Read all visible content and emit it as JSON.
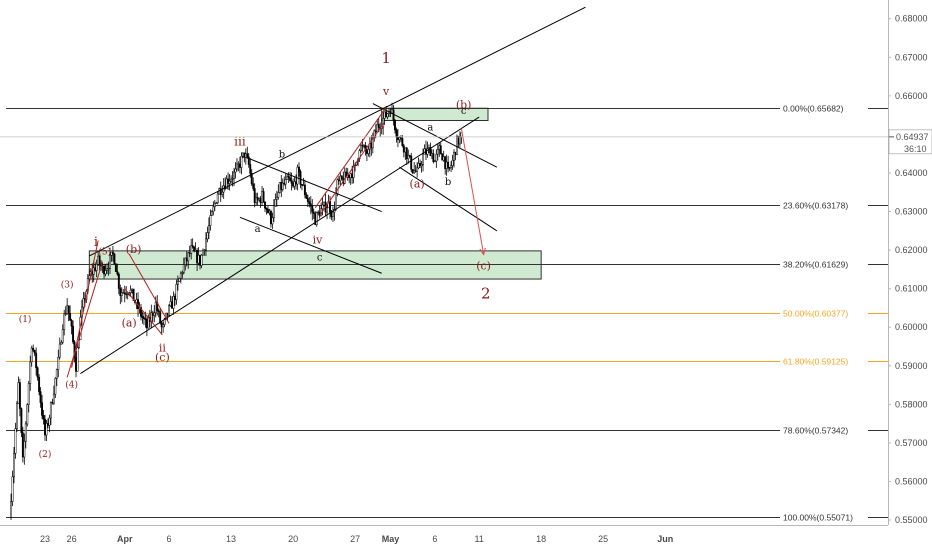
{
  "chart_data": {
    "type": "candlestick",
    "ylim": [
      0.5495,
      0.6833
    ],
    "y_ticks": [
      "0.55000",
      "0.56000",
      "0.57000",
      "0.58000",
      "0.59000",
      "0.60000",
      "0.61000",
      "0.62000",
      "0.63000",
      "0.64000",
      "0.65000",
      "0.66000",
      "0.67000",
      "0.68000"
    ],
    "x_ticks": [
      "23",
      "26",
      "Apr",
      "6",
      "13",
      "20",
      "27",
      "May",
      "6",
      "11",
      "18",
      "25",
      "Jun"
    ],
    "x_tick_dates": [
      "2020-03-23",
      "2020-03-26",
      "2020-04-01",
      "2020-04-06",
      "2020-04-13",
      "2020-04-20",
      "2020-04-27",
      "2020-05-01",
      "2020-05-06",
      "2020-05-11",
      "2020-05-18",
      "2020-05-25",
      "2020-06-01"
    ],
    "current_price": {
      "value": 0.64937,
      "label": "0.64937",
      "countdown": "36:10",
      "color": "#555555"
    },
    "price_path": [
      [
        "2020-03-19T00:00",
        0.5507
      ],
      [
        "2020-03-20T00:00",
        0.585
      ],
      [
        "2020-03-20T12:00",
        0.565
      ],
      [
        "2020-03-21T12:00",
        0.596
      ],
      [
        "2020-03-22T00:00",
        0.59
      ],
      [
        "2020-03-23T00:00",
        0.572
      ],
      [
        "2020-03-23T12:00",
        0.577
      ],
      [
        "2020-03-24T12:00",
        0.591
      ],
      [
        "2020-03-25T00:00",
        0.601
      ],
      [
        "2020-03-25T12:00",
        0.606
      ],
      [
        "2020-03-26T00:00",
        0.599
      ],
      [
        "2020-03-26T12:00",
        0.59
      ],
      [
        "2020-03-27T00:00",
        0.602
      ],
      [
        "2020-03-27T12:00",
        0.608
      ],
      [
        "2020-03-28T00:00",
        0.613
      ],
      [
        "2020-03-29T00:00",
        0.617
      ],
      [
        "2020-03-29T12:00",
        0.615
      ],
      [
        "2020-03-30T00:00",
        0.616
      ],
      [
        "2020-03-30T18:00",
        0.619
      ],
      [
        "2020-03-31T12:00",
        0.609
      ],
      [
        "2020-04-01T12:00",
        0.61
      ],
      [
        "2020-04-02T12:00",
        0.605
      ],
      [
        "2020-04-03T12:00",
        0.6
      ],
      [
        "2020-04-04T12:00",
        0.606
      ],
      [
        "2020-04-05T06:00",
        0.599
      ],
      [
        "2020-04-05T18:00",
        0.603
      ],
      [
        "2020-04-06T12:00",
        0.607
      ],
      [
        "2020-04-07T12:00",
        0.615
      ],
      [
        "2020-04-08T12:00",
        0.62
      ],
      [
        "2020-04-09T12:00",
        0.617
      ],
      [
        "2020-04-10T12:00",
        0.626
      ],
      [
        "2020-04-11T12:00",
        0.635
      ],
      [
        "2020-04-12T12:00",
        0.638
      ],
      [
        "2020-04-13T12:00",
        0.64
      ],
      [
        "2020-04-14T12:00",
        0.645
      ],
      [
        "2020-04-15T00:00",
        0.642
      ],
      [
        "2020-04-15T18:00",
        0.632
      ],
      [
        "2020-04-16T12:00",
        0.634
      ],
      [
        "2020-04-17T12:00",
        0.628
      ],
      [
        "2020-04-18T12:00",
        0.636
      ],
      [
        "2020-04-19T12:00",
        0.638
      ],
      [
        "2020-04-20T00:00",
        0.636
      ],
      [
        "2020-04-20T12:00",
        0.64
      ],
      [
        "2020-04-21T12:00",
        0.634
      ],
      [
        "2020-04-22T12:00",
        0.628
      ],
      [
        "2020-04-23T00:00",
        0.63
      ],
      [
        "2020-04-24T00:00",
        0.632
      ],
      [
        "2020-04-24T12:00",
        0.629
      ],
      [
        "2020-04-25T00:00",
        0.637
      ],
      [
        "2020-04-26T00:00",
        0.639
      ],
      [
        "2020-04-27T00:00",
        0.641
      ],
      [
        "2020-04-27T12:00",
        0.647
      ],
      [
        "2020-04-28T12:00",
        0.645
      ],
      [
        "2020-04-29T12:00",
        0.652
      ],
      [
        "2020-04-30T12:00",
        0.655
      ],
      [
        "2020-05-01T00:00",
        0.657
      ],
      [
        "2020-05-01T18:00",
        0.65
      ],
      [
        "2020-05-02T12:00",
        0.647
      ],
      [
        "2020-05-03T12:00",
        0.641
      ],
      [
        "2020-05-04T00:00",
        0.64
      ],
      [
        "2020-05-04T18:00",
        0.645
      ],
      [
        "2020-05-05T12:00",
        0.646
      ],
      [
        "2020-05-06T00:00",
        0.643
      ],
      [
        "2020-05-06T12:00",
        0.646
      ],
      [
        "2020-05-07T00:00",
        0.644
      ],
      [
        "2020-05-07T12:00",
        0.64
      ],
      [
        "2020-05-08T00:00",
        0.643
      ],
      [
        "2020-05-08T12:00",
        0.648
      ],
      [
        "2020-05-09T00:00",
        0.6493
      ]
    ],
    "fib_levels": [
      {
        "label": "0.00%(0.65682)",
        "value": 0.65682,
        "color": "#333333"
      },
      {
        "label": "23.60%(0.63178)",
        "value": 0.63178,
        "color": "#333333"
      },
      {
        "label": "38.20%(0.61629)",
        "value": 0.61629,
        "color": "#333333"
      },
      {
        "label": "50.00%(0.60377)",
        "value": 0.60377,
        "color": "#f5a623"
      },
      {
        "label": "61.80%(0.59125)",
        "value": 0.59125,
        "color": "#f5a623"
      },
      {
        "label": "78.60%(0.57342)",
        "value": 0.57342,
        "color": "#333333"
      },
      {
        "label": "100.00%(0.55071)",
        "value": 0.55071,
        "color": "#333333"
      }
    ],
    "zones": [
      {
        "x0": "2020-04-30T00:00",
        "x1": "2020-05-12T00:00",
        "y0": 0.6536,
        "y1": 0.6568
      },
      {
        "x0": "2020-03-28T00:00",
        "x1": "2020-05-18T00:00",
        "y0": 0.6125,
        "y1": 0.6198
      }
    ],
    "trend_lines": [
      {
        "p": [
          [
            "2020-03-28T00:00",
            0.6185
          ],
          [
            "2020-05-23T00:00",
            0.683
          ]
        ],
        "color": "#000000"
      },
      {
        "p": [
          [
            "2020-03-27T00:00",
            0.588
          ],
          [
            "2020-05-11T00:00",
            0.6545
          ]
        ],
        "color": "#000000"
      },
      {
        "p": [
          [
            "2020-04-14T18:00",
            0.644
          ],
          [
            "2020-04-30T00:00",
            0.63
          ]
        ],
        "color": "#000000"
      },
      {
        "p": [
          [
            "2020-04-14T00:00",
            0.6285
          ],
          [
            "2020-04-30T00:00",
            0.614
          ]
        ],
        "color": "#000000"
      },
      {
        "p": [
          [
            "2020-04-29T00:00",
            0.658
          ],
          [
            "2020-05-13T00:00",
            0.6415
          ]
        ],
        "color": "#000000"
      },
      {
        "p": [
          [
            "2020-05-02T00:00",
            0.6415
          ],
          [
            "2020-05-13T00:00",
            0.625
          ]
        ],
        "color": "#000000"
      },
      {
        "p": [
          [
            "2020-03-26T00:00",
            0.5895
          ],
          [
            "2020-03-29T00:00",
            0.6225
          ]
        ],
        "color": "#b22222"
      },
      {
        "p": [
          [
            "2020-03-25T12:00",
            0.587
          ],
          [
            "2020-03-29T12:00",
            0.617
          ]
        ],
        "color": "#b22222"
      },
      {
        "p": [
          [
            "2020-04-01T12:00",
            0.619
          ],
          [
            "2020-04-06T00:00",
            0.601
          ]
        ],
        "color": "#b22222"
      },
      {
        "p": [
          [
            "2020-04-01T00:00",
            0.61
          ],
          [
            "2020-04-05T06:00",
            0.598
          ]
        ],
        "color": "#b22222"
      },
      {
        "p": [
          [
            "2020-04-22T12:00",
            0.631
          ],
          [
            "2020-04-30T12:00",
            0.657
          ]
        ],
        "color": "#b22222"
      },
      {
        "p": [
          [
            "2020-04-23T00:00",
            0.629
          ],
          [
            "2020-04-30T06:00",
            0.653
          ]
        ],
        "color": "#b22222"
      },
      {
        "p": [
          [
            "2020-05-09T00:00",
            0.6515
          ],
          [
            "2020-05-11T12:00",
            0.619
          ]
        ],
        "color": "#e05050",
        "arrow": true
      }
    ],
    "annotations": [
      {
        "text": "1",
        "x": "2020-04-30T12:00",
        "y": 0.6695,
        "color": "#8b1a1a",
        "size": 15
      },
      {
        "text": "v",
        "x": "2020-04-30T12:00",
        "y": 0.661,
        "color": "#8b1a1a",
        "size": 11
      },
      {
        "text": "2",
        "x": "2020-05-11T18:00",
        "y": 0.6085,
        "color": "#8b1a1a",
        "size": 15
      },
      {
        "text": "iii",
        "x": "2020-04-14T00:00",
        "y": 0.648,
        "color": "#8b1a1a",
        "size": 12
      },
      {
        "text": "i",
        "x": "2020-03-28T18:00",
        "y": 0.622,
        "color": "#8b1a1a",
        "size": 13
      },
      {
        "text": "ii",
        "x": "2020-04-05T06:00",
        "y": 0.5945,
        "color": "#8b1a1a",
        "size": 11
      },
      {
        "text": "iv",
        "x": "2020-04-22T18:00",
        "y": 0.6225,
        "color": "#8b1a1a",
        "size": 11
      },
      {
        "text": "(1)",
        "x": "2020-03-20T18:00",
        "y": 0.602,
        "color": "#8b1a1a",
        "size": 9
      },
      {
        "text": "(2)",
        "x": "2020-03-23T00:00",
        "y": 0.567,
        "color": "#8b1a1a",
        "size": 9
      },
      {
        "text": "(3)",
        "x": "2020-03-25T12:00",
        "y": 0.611,
        "color": "#8b1a1a",
        "size": 9
      },
      {
        "text": "(4)",
        "x": "2020-03-26T00:00",
        "y": 0.585,
        "color": "#8b1a1a",
        "size": 9
      },
      {
        "text": "(5)",
        "x": "2020-03-29T18:00",
        "y": 0.6195,
        "color": "#8b1a1a",
        "size": 9
      },
      {
        "text": "(a)",
        "x": "2020-04-01T12:00",
        "y": 0.601,
        "color": "#8b1a1a",
        "size": 11
      },
      {
        "text": "(b)",
        "x": "2020-04-02T00:00",
        "y": 0.62,
        "color": "#8b1a1a",
        "size": 11
      },
      {
        "text": "(c)",
        "x": "2020-04-05T06:00",
        "y": 0.592,
        "color": "#8b1a1a",
        "size": 11
      },
      {
        "text": "(a)",
        "x": "2020-05-04T00:00",
        "y": 0.637,
        "color": "#8b1a1a",
        "size": 11
      },
      {
        "text": "(b)",
        "x": "2020-05-09T06:00",
        "y": 0.6575,
        "color": "#8b1a1a",
        "size": 11
      },
      {
        "text": "(c)",
        "x": "2020-05-11T12:00",
        "y": 0.6158,
        "color": "#8b1a1a",
        "size": 11
      },
      {
        "text": "a",
        "x": "2020-04-16T00:00",
        "y": 0.6253,
        "color": "#111111",
        "size": 10
      },
      {
        "text": "b",
        "x": "2020-04-18T18:00",
        "y": 0.6447,
        "color": "#111111",
        "size": 10
      },
      {
        "text": "c",
        "x": "2020-04-23T00:00",
        "y": 0.618,
        "color": "#111111",
        "size": 10
      },
      {
        "text": "a",
        "x": "2020-05-05T12:00",
        "y": 0.6517,
        "color": "#111111",
        "size": 10
      },
      {
        "text": "b",
        "x": "2020-05-07T12:00",
        "y": 0.6375,
        "color": "#111111",
        "size": 10
      },
      {
        "text": "c",
        "x": "2020-05-09T06:00",
        "y": 0.656,
        "color": "#111111",
        "size": 10
      }
    ]
  }
}
